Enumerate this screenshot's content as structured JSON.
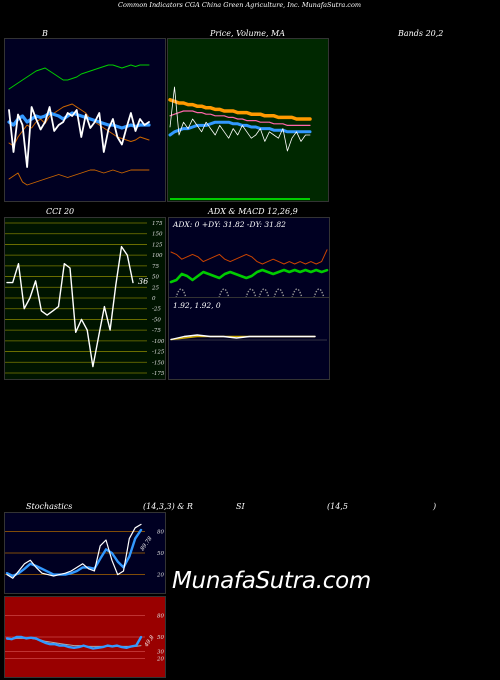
{
  "header": {
    "title": "Common Indicators CGA China Green Agriculture, Inc. MunafaSutra.com"
  },
  "labels": {
    "b_title": "B",
    "price_title": "Price, Volume, MA",
    "bands_title": "Bands 20,2",
    "cci_title": "CCI 20",
    "adx_title": "ADX  & MACD 12,26,9",
    "adx_readout": "ADX: 0  +DY: 31.82  -DY: 31.82",
    "macd_readout": "1.92,  1.92,  0",
    "stoch_title": "Stochastics",
    "stoch_params": "(14,3,3) & R",
    "rsi_title": "SI",
    "rsi_params": "(14,5",
    "rsi_close": ")",
    "cci_value": "36",
    "stoch_value": "89.78",
    "rsi_value": "49.8",
    "watermark": "MunafaSutra.com"
  },
  "colors": {
    "panel_navy": "#000022",
    "panel_green": "#002800",
    "panel_olive": "#001400",
    "panel_red": "#990000",
    "line_white": "#ffffff",
    "line_green": "#00cc00",
    "line_blue": "#3399ff",
    "line_orange": "#cc6600",
    "line_gold": "#ff9900",
    "grid_olive": "#7a7a00",
    "grid_orange": "#aa6600"
  },
  "chart_data": [
    {
      "type": "line",
      "panel": "bollinger",
      "title": "B",
      "series": [
        {
          "values": [
            36,
            34,
            40,
            44,
            48,
            46,
            50,
            52,
            49,
            54,
            56,
            58,
            60,
            61,
            62,
            60,
            58,
            56,
            52,
            50,
            48,
            46,
            44,
            42,
            40,
            39,
            38,
            37,
            38,
            40,
            39,
            38
          ]
        },
        {
          "values": [
            58,
            30,
            55,
            48,
            20,
            60,
            52,
            45,
            50,
            60,
            44,
            48,
            50,
            56,
            54,
            58,
            40,
            55,
            46,
            50,
            56,
            30,
            45,
            52,
            40,
            35,
            46,
            56,
            44,
            52,
            48,
            50
          ]
        },
        {
          "values": [
            50,
            48,
            52,
            54,
            50,
            52,
            54,
            53,
            54,
            56,
            55,
            54,
            52,
            54,
            56,
            55,
            54,
            53,
            52,
            51,
            50,
            49,
            48,
            48,
            47,
            46,
            47,
            48,
            47,
            48,
            48,
            48
          ]
        },
        {
          "values": [
            72,
            74,
            76,
            78,
            80,
            82,
            84,
            85,
            86,
            84,
            82,
            80,
            78,
            78,
            79,
            80,
            82,
            83,
            84,
            85,
            86,
            87,
            88,
            88,
            87,
            86,
            87,
            88,
            87,
            88,
            88,
            88
          ]
        },
        {
          "values": [
            12,
            14,
            16,
            10,
            8,
            9,
            10,
            11,
            12,
            13,
            14,
            15,
            14,
            13,
            14,
            15,
            16,
            17,
            18,
            18,
            17,
            16,
            17,
            18,
            17,
            16,
            17,
            18,
            18,
            18,
            18,
            18
          ]
        }
      ]
    },
    {
      "type": "line",
      "panel": "price_volume_ma",
      "title": "Price, Volume, MA",
      "series": [
        {
          "values": [
            62,
            61,
            60,
            60,
            59,
            59,
            58,
            58,
            57,
            57,
            56,
            56,
            55,
            55,
            55,
            54,
            54,
            54,
            53,
            53,
            53,
            52,
            52,
            52,
            51,
            51,
            51,
            51,
            50,
            50,
            50,
            50
          ]
        },
        {
          "values": [
            52,
            53,
            54,
            55,
            55,
            55,
            54,
            54,
            53,
            53,
            52,
            52,
            52,
            51,
            51,
            50,
            50,
            49,
            49,
            49,
            48,
            48,
            48,
            47,
            47,
            47,
            46,
            46,
            46,
            46,
            46,
            46
          ]
        },
        {
          "values": [
            40,
            42,
            43,
            44,
            44,
            45,
            46,
            46,
            46,
            47,
            48,
            48,
            48,
            48,
            47,
            47,
            46,
            46,
            45,
            45,
            44,
            44,
            44,
            43,
            43,
            43,
            42,
            42,
            42,
            42,
            42,
            42
          ]
        },
        {
          "values": [
            45,
            70,
            40,
            48,
            44,
            50,
            46,
            42,
            48,
            44,
            40,
            46,
            42,
            38,
            44,
            40,
            46,
            42,
            38,
            40,
            44,
            36,
            42,
            40,
            38,
            44,
            30,
            38,
            42,
            36,
            40,
            40
          ]
        }
      ]
    },
    {
      "type": "line",
      "panel": "cci",
      "title": "CCI 20",
      "ylim": [
        -175,
        175
      ],
      "ticks": [
        175,
        150,
        125,
        100,
        75,
        50,
        25,
        0,
        -25,
        -50,
        -75,
        -100,
        -125,
        -150,
        -175
      ],
      "series": [
        {
          "name": "CCI",
          "values": [
            36,
            36,
            80,
            -25,
            0,
            40,
            -30,
            -40,
            -30,
            -20,
            80,
            70,
            -80,
            -50,
            -75,
            -160,
            -90,
            -20,
            -75,
            30,
            120,
            100,
            36
          ]
        }
      ]
    },
    {
      "type": "line",
      "panel": "adx",
      "title": "ADX  & MACD 12,26,9",
      "series": [
        {
          "name": "ADX",
          "values": [
            0,
            0,
            0,
            0,
            0,
            0,
            0,
            0,
            0,
            0,
            0,
            0,
            0,
            0,
            0,
            0,
            0,
            0,
            0,
            0,
            0,
            0,
            0,
            0,
            0,
            0,
            0,
            0,
            0,
            0
          ]
        },
        {
          "name": "+DY",
          "values": [
            20,
            22,
            28,
            26,
            22,
            26,
            30,
            28,
            26,
            24,
            28,
            30,
            28,
            26,
            24,
            26,
            30,
            32,
            30,
            28,
            30,
            32,
            30,
            32,
            30,
            32,
            30,
            32,
            30,
            31.82
          ]
        },
        {
          "name": "-DY",
          "values": [
            30,
            28,
            24,
            26,
            28,
            26,
            22,
            24,
            26,
            28,
            24,
            22,
            24,
            26,
            28,
            26,
            22,
            20,
            22,
            24,
            22,
            20,
            22,
            20,
            22,
            20,
            22,
            20,
            22,
            31.82
          ]
        }
      ]
    },
    {
      "type": "line",
      "panel": "macd",
      "series": [
        {
          "name": "MACD",
          "values": [
            1.9,
            1.92,
            1.93,
            1.92,
            1.92,
            1.91,
            1.92,
            1.92,
            1.92,
            1.92,
            1.92,
            1.92
          ]
        },
        {
          "name": "Signal",
          "values": [
            1.9,
            1.91,
            1.92,
            1.92,
            1.92,
            1.92,
            1.92,
            1.92,
            1.92,
            1.92,
            1.92,
            1.92
          ]
        }
      ]
    },
    {
      "type": "line",
      "panel": "stochastics",
      "title": "Stochastics",
      "ylim": [
        0,
        100
      ],
      "ticks": [
        80,
        50,
        20
      ],
      "series": [
        {
          "name": "%K",
          "values": [
            20,
            15,
            25,
            35,
            40,
            30,
            22,
            20,
            18,
            20,
            22,
            25,
            30,
            35,
            28,
            25,
            60,
            68,
            40,
            20,
            25,
            70,
            85,
            89.78
          ]
        },
        {
          "name": "%D",
          "values": [
            22,
            18,
            22,
            28,
            35,
            32,
            28,
            24,
            20,
            20,
            20,
            22,
            25,
            30,
            30,
            28,
            42,
            55,
            50,
            38,
            30,
            45,
            70,
            82
          ]
        }
      ]
    },
    {
      "type": "line",
      "panel": "rsi",
      "title": "SI",
      "ylim": [
        0,
        100
      ],
      "ticks": [
        80,
        50,
        30,
        20
      ],
      "series": [
        {
          "name": "RSI",
          "values": [
            48,
            47,
            50,
            50,
            48,
            49,
            48,
            45,
            42,
            40,
            40,
            38,
            38,
            36,
            35,
            36,
            38,
            36,
            34,
            35,
            36,
            38,
            37,
            38,
            36,
            35,
            37,
            38,
            49.8
          ]
        },
        {
          "name": "MA",
          "values": [
            47,
            47,
            48,
            48,
            48,
            48,
            47,
            46,
            44,
            43,
            42,
            41,
            40,
            39,
            38,
            38,
            38,
            37,
            37,
            37,
            37,
            37,
            37,
            37,
            37,
            37,
            37,
            37,
            38
          ]
        }
      ]
    }
  ]
}
